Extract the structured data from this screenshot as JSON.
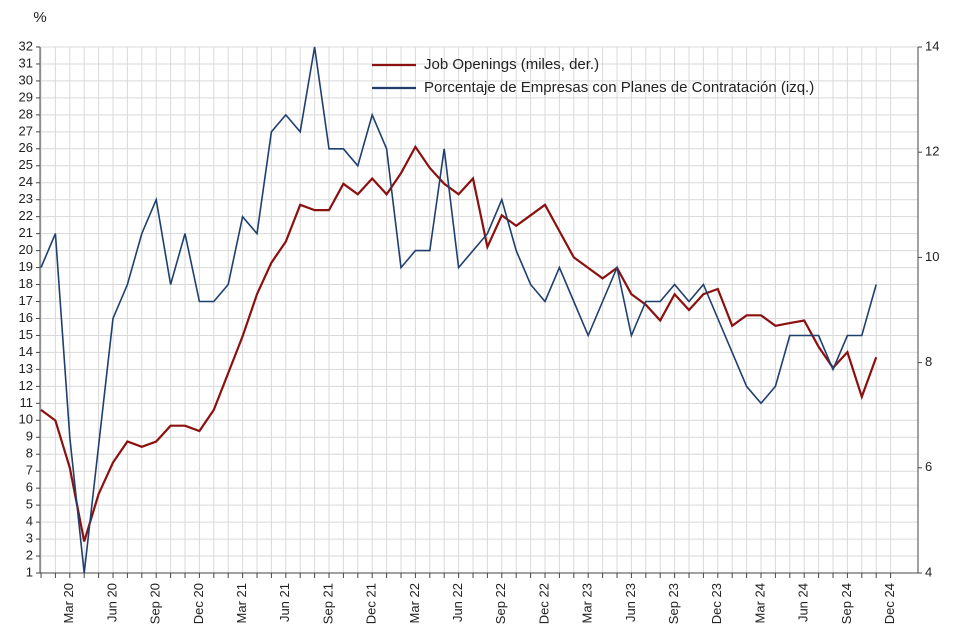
{
  "chart_data": {
    "type": "line",
    "y_label": "%",
    "categories": [
      null,
      null,
      "Mar 20",
      null,
      null,
      "Jun 20",
      null,
      null,
      "Sep 20",
      null,
      null,
      "Dec 20",
      null,
      null,
      "Mar 21",
      null,
      null,
      "Jun 21",
      null,
      null,
      "Sep 21",
      null,
      null,
      "Dec 21",
      null,
      null,
      "Mar 22",
      null,
      null,
      "Jun 22",
      null,
      null,
      "Sep 22",
      null,
      null,
      "Dec 22",
      null,
      null,
      "Mar 23",
      null,
      null,
      "Jun 23",
      null,
      null,
      "Sep 23",
      null,
      null,
      "Dec 23",
      null,
      null,
      "Mar 24",
      null,
      null,
      "Jun 24",
      null,
      null,
      "Sep 24",
      null,
      null,
      "Dec 24"
    ],
    "series": [
      {
        "name": "Job Openings (miles, der.)",
        "color": "#8b1010",
        "axis": "y2",
        "values": [
          7.1,
          6.9,
          6.0,
          4.6,
          5.5,
          6.1,
          6.5,
          6.4,
          6.5,
          6.8,
          6.8,
          6.7,
          7.1,
          7.8,
          8.5,
          9.3,
          9.9,
          10.3,
          11.0,
          10.9,
          10.9,
          11.4,
          11.2,
          11.5,
          11.2,
          11.6,
          12.1,
          11.7,
          11.4,
          11.2,
          11.5,
          10.2,
          10.8,
          10.6,
          10.8,
          11.0,
          10.5,
          10.0,
          9.8,
          9.6,
          9.8,
          9.3,
          9.1,
          8.8,
          9.3,
          9.0,
          9.3,
          9.4,
          8.7,
          8.9,
          8.9,
          8.7,
          8.75,
          8.8,
          8.3,
          7.9,
          8.2,
          7.35,
          8.1,
          null
        ]
      },
      {
        "name": "Porcentaje de Empresas con Planes de Contratación (izq.)",
        "color": "#1f3f6e",
        "axis": "y",
        "values": [
          19,
          21,
          9,
          1,
          8.5,
          16,
          18,
          21,
          23,
          18,
          21,
          17,
          17,
          18,
          22,
          21,
          27,
          28,
          27,
          32,
          26,
          26,
          25,
          28,
          26,
          19,
          20,
          20,
          26,
          19,
          20,
          21,
          23,
          20,
          18,
          17,
          19,
          17,
          15,
          17,
          19,
          15,
          17,
          17,
          18,
          17,
          18,
          16,
          14,
          12,
          11,
          12,
          15,
          15,
          15,
          13,
          15,
          15,
          18,
          null
        ]
      }
    ],
    "ylim": [
      1,
      32
    ],
    "yticks": [
      1,
      2,
      3,
      4,
      5,
      6,
      7,
      8,
      9,
      10,
      11,
      12,
      13,
      14,
      15,
      16,
      17,
      18,
      19,
      20,
      21,
      22,
      23,
      24,
      25,
      26,
      27,
      28,
      29,
      30,
      31,
      32
    ],
    "y2lim": [
      4,
      14
    ],
    "y2ticks": [
      4,
      6,
      8,
      10,
      12,
      14
    ],
    "grid": true,
    "legend": "top"
  }
}
